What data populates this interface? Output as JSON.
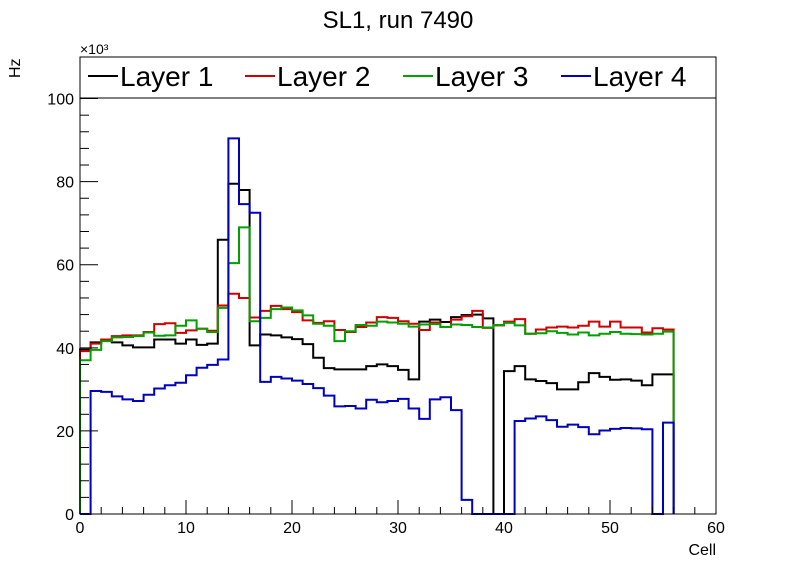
{
  "chart_data": {
    "type": "line",
    "title": "SL1, run 7490",
    "xlabel": "Cell",
    "ylabel": "Hz",
    "y_multiplier": "×10³",
    "xlim": [
      0,
      60
    ],
    "ylim": [
      0,
      110
    ],
    "x_ticks": [
      0,
      10,
      20,
      30,
      40,
      50,
      60
    ],
    "y_ticks": [
      0,
      20,
      40,
      60,
      80,
      100
    ],
    "grid": false,
    "legend_position": "top",
    "series": [
      {
        "name": "Layer 1",
        "color": "#000000",
        "values": [
          39.6,
          41.3,
          41.7,
          41.3,
          40.6,
          40.1,
          40.1,
          42.0,
          42.0,
          41.0,
          42.0,
          40.7,
          41.0,
          66.0,
          79.5,
          78.0,
          40.6,
          43.2,
          43.0,
          42.5,
          42.1,
          40.9,
          37.6,
          35.1,
          34.8,
          34.8,
          34.8,
          35.6,
          36.0,
          35.6,
          34.7,
          32.4,
          46.3,
          46.8,
          46.2,
          47.4,
          47.9,
          48.0,
          47.1,
          0.0,
          34.4,
          35.6,
          32.4,
          32.0,
          31.5,
          30.0,
          30.0,
          31.7,
          33.9,
          33.0,
          32.3,
          32.4,
          32.1,
          31.0,
          33.6,
          33.6
        ]
      },
      {
        "name": "Layer 2",
        "color": "#d00000",
        "values": [
          39.2,
          41.0,
          42.0,
          42.8,
          43.0,
          43.0,
          43.8,
          45.7,
          45.9,
          43.6,
          44.2,
          44.6,
          44.1,
          50.2,
          53.0,
          52.0,
          47.3,
          48.9,
          50.1,
          49.3,
          48.6,
          46.6,
          46.0,
          46.4,
          44.3,
          43.8,
          45.0,
          46.1,
          47.4,
          47.2,
          46.4,
          45.8,
          44.3,
          46.1,
          45.0,
          46.8,
          47.6,
          48.9,
          44.8,
          45.4,
          46.3,
          46.9,
          43.4,
          44.4,
          44.9,
          45.1,
          44.9,
          45.3,
          46.3,
          45.1,
          46.3,
          44.9,
          44.9,
          43.7,
          44.7,
          44.4
        ]
      },
      {
        "name": "Layer 3",
        "color": "#00a000",
        "values": [
          37.0,
          39.5,
          41.6,
          42.5,
          42.6,
          42.8,
          43.7,
          42.9,
          43.0,
          45.3,
          46.6,
          44.6,
          43.8,
          49.6,
          60.4,
          69.0,
          46.4,
          47.2,
          49.3,
          49.7,
          49.0,
          47.8,
          45.8,
          45.3,
          41.6,
          44.0,
          45.5,
          45.3,
          46.3,
          46.1,
          45.8,
          45.1,
          45.6,
          45.7,
          45.0,
          45.6,
          45.5,
          45.0,
          44.9,
          45.5,
          46.0,
          45.4,
          43.4,
          43.5,
          44.0,
          43.6,
          43.2,
          43.7,
          43.0,
          43.4,
          43.8,
          43.4,
          43.3,
          43.2,
          43.4,
          43.9
        ]
      },
      {
        "name": "Layer 4",
        "color": "#0000c0",
        "values": [
          0.0,
          29.6,
          29.4,
          28.3,
          27.6,
          27.2,
          28.7,
          30.2,
          31.0,
          31.6,
          33.4,
          35.2,
          35.9,
          37.2,
          90.4,
          74.6,
          72.5,
          31.8,
          33.0,
          32.6,
          32.1,
          31.3,
          30.3,
          28.5,
          25.9,
          26.0,
          25.4,
          27.5,
          26.9,
          27.2,
          27.7,
          25.4,
          22.9,
          27.6,
          28.1,
          25.0,
          3.4,
          0.0,
          0.0,
          0.0,
          0.0,
          22.4,
          23.0,
          23.5,
          22.6,
          21.0,
          21.5,
          20.9,
          19.2,
          20.1,
          20.5,
          20.7,
          20.6,
          20.4,
          0.0,
          22.0
        ]
      }
    ]
  }
}
